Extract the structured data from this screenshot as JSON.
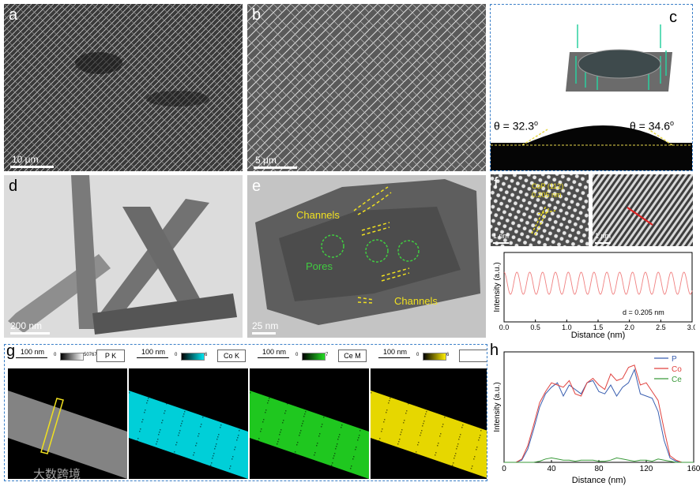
{
  "panels": {
    "a": {
      "letter": "a",
      "scale": "10 μm"
    },
    "b": {
      "letter": "b",
      "scale": "5 μm"
    },
    "c": {
      "letter": "c",
      "theta_left": "θ = 32.3",
      "theta_right": "θ = 34.6",
      "sup": "o"
    },
    "d": {
      "letter": "d",
      "scale": "200 nm"
    },
    "e": {
      "letter": "e",
      "scale": "25 nm",
      "label_channels": "Channels",
      "label_pores": "Pores",
      "label_channels2": "Channels"
    },
    "f": {
      "letter": "f",
      "scale_left": "1 nm",
      "scale_right": "1 nm",
      "annotation": "CoP (112)",
      "annotation2": "0.205 nm"
    },
    "g": {
      "letter": "g",
      "maps": [
        {
          "scale": "100 nm",
          "channel": "P K",
          "min": "0",
          "max": "50767",
          "color": "#ffffff"
        },
        {
          "scale": "100 nm",
          "channel": "Co K",
          "min": "0",
          "max": "6",
          "color": "#00e5f0"
        },
        {
          "scale": "100 nm",
          "channel": "Ce M",
          "min": "0",
          "max": "7",
          "color": "#22dd22"
        },
        {
          "scale": "100 nm",
          "channel": "",
          "min": "0",
          "max": "6",
          "color": "#ffee00"
        }
      ]
    },
    "h": {
      "letter": "h"
    }
  },
  "watermark": "大数跨境",
  "chart_data": [
    {
      "type": "line",
      "title": "",
      "xlabel": "Distance (nm)",
      "ylabel": "Intensity (a.u.)",
      "xlim": [
        0.0,
        3.0
      ],
      "xticks": [
        "0.0",
        "0.5",
        "1.0",
        "1.5",
        "2.0",
        "2.5",
        "3.0"
      ],
      "annotation": "d = 0.205 nm",
      "period": 0.205,
      "color": "#f08080"
    },
    {
      "type": "line",
      "title": "",
      "xlabel": "Distance (nm)",
      "ylabel": "Intensity (a.u.)",
      "xlim": [
        0,
        160
      ],
      "xticks": [
        "0",
        "40",
        "80",
        "120",
        "160"
      ],
      "legend_position": "top-right",
      "x": [
        0,
        5,
        10,
        15,
        20,
        25,
        30,
        35,
        40,
        45,
        50,
        55,
        60,
        65,
        70,
        75,
        80,
        85,
        90,
        95,
        100,
        105,
        110,
        115,
        120,
        125,
        130,
        135,
        140,
        145,
        150,
        155,
        160
      ],
      "series": [
        {
          "name": "P",
          "color": "#3a5fb0",
          "values": [
            0,
            0,
            0,
            2,
            12,
            30,
            50,
            62,
            68,
            72,
            60,
            70,
            66,
            62,
            72,
            74,
            64,
            62,
            70,
            60,
            68,
            72,
            84,
            62,
            60,
            58,
            46,
            20,
            4,
            1,
            0,
            0,
            0
          ]
        },
        {
          "name": "Co",
          "color": "#e0423f",
          "values": [
            0,
            0,
            0,
            3,
            15,
            34,
            54,
            64,
            72,
            70,
            68,
            74,
            62,
            60,
            72,
            76,
            70,
            66,
            80,
            74,
            76,
            86,
            88,
            70,
            72,
            64,
            56,
            30,
            6,
            2,
            0,
            0,
            0
          ]
        },
        {
          "name": "Ce",
          "color": "#3a9a3a",
          "values": [
            0,
            0,
            0,
            0,
            0,
            0,
            1,
            3,
            4,
            3,
            2,
            2,
            1,
            2,
            2,
            2,
            1,
            1,
            2,
            4,
            3,
            2,
            1,
            2,
            2,
            1,
            3,
            2,
            1,
            0,
            0,
            0,
            0
          ]
        }
      ]
    }
  ]
}
